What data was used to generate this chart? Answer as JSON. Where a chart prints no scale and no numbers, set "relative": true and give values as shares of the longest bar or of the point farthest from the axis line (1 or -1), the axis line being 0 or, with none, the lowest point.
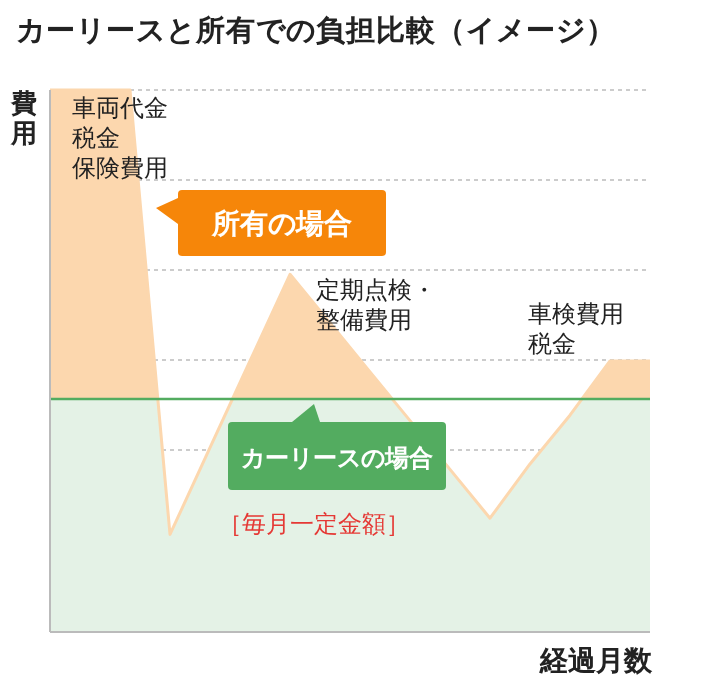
{
  "chart_data": {
    "type": "area",
    "title": "カーリースと所有での負担比較（イメージ）",
    "xlabel": "経過月数",
    "ylabel": "費用",
    "relative": true,
    "grid": "y",
    "categories": [
      null,
      null,
      null,
      null,
      null,
      null,
      null,
      null,
      null,
      null,
      null,
      null,
      null,
      null,
      null,
      null
    ],
    "series": [
      {
        "name": "所有の場合",
        "color": "#fcd7ae",
        "values": [
          1,
          1,
          1,
          0.18,
          0.34,
          0.5,
          0.66,
          0.57,
          0.48,
          0.39,
          0.3,
          0.21,
          0.31,
          0.4,
          0.5,
          0.5
        ]
      },
      {
        "name": "カーリースの場合",
        "color": "#e4f2e6",
        "values": [
          0.43,
          0.43,
          0.43,
          0.43,
          0.43,
          0.43,
          0.43,
          0.43,
          0.43,
          0.43,
          0.43,
          0.43,
          0.43,
          0.43,
          0.43,
          0.43
        ]
      }
    ],
    "annotations": [
      "車両代金",
      "税金",
      "保険費用",
      "定期点検・",
      "整備費用",
      "車検費用",
      "税金",
      "［毎月一定金額］"
    ]
  }
}
